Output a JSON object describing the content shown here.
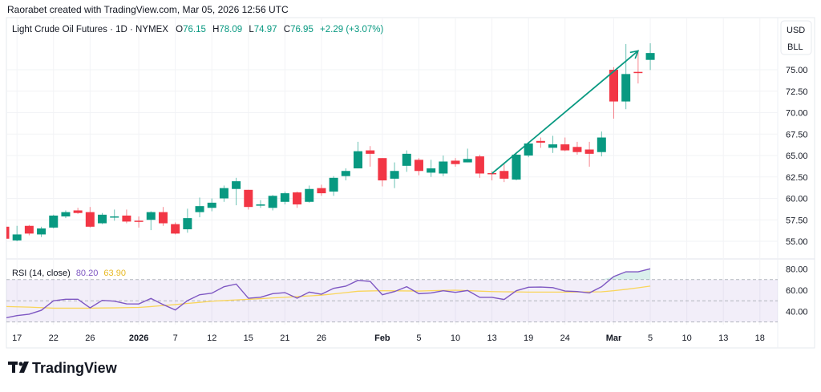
{
  "header": {
    "credit": "Raorabet created with TradingView.com, Mar 05, 2026 12:56 UTC"
  },
  "legend": {
    "symbol": "Light Crude Oil Futures · 1D · NYMEX",
    "o_label": "O",
    "o": "76.15",
    "h_label": "H",
    "h": "78.09",
    "l_label": "L",
    "l": "74.97",
    "c_label": "C",
    "c": "76.95",
    "change": "+2.29 (+3.07%)"
  },
  "price_axis": {
    "currency": "USD",
    "unit": "BLL",
    "ticks": [
      "75.00",
      "72.50",
      "70.00",
      "67.50",
      "65.00",
      "62.50",
      "60.00",
      "57.50",
      "55.00"
    ]
  },
  "rsi": {
    "label": "RSI (14, close)",
    "value": "80.20",
    "ma_value": "63.90",
    "ticks": [
      "80.00",
      "60.00",
      "40.00"
    ],
    "bands": [
      70,
      50,
      30
    ]
  },
  "time_axis": [
    {
      "t": "17",
      "i": 1
    },
    {
      "t": "22",
      "i": 4
    },
    {
      "t": "26",
      "i": 7
    },
    {
      "t": "2026",
      "i": 11,
      "bold": true
    },
    {
      "t": "7",
      "i": 14
    },
    {
      "t": "12",
      "i": 17
    },
    {
      "t": "15",
      "i": 20
    },
    {
      "t": "21",
      "i": 23
    },
    {
      "t": "26",
      "i": 26
    },
    {
      "t": "Feb",
      "i": 31,
      "bold": true
    },
    {
      "t": "5",
      "i": 34
    },
    {
      "t": "10",
      "i": 37
    },
    {
      "t": "13",
      "i": 40
    },
    {
      "t": "19",
      "i": 43
    },
    {
      "t": "24",
      "i": 46
    },
    {
      "t": "Mar",
      "i": 50,
      "bold": true
    },
    {
      "t": "5",
      "i": 53
    },
    {
      "t": "10",
      "i": 56
    },
    {
      "t": "13",
      "i": 59
    },
    {
      "t": "18",
      "i": 62
    }
  ],
  "colors": {
    "up": "#089981",
    "down": "#f23645",
    "rsi": "#7e57c2",
    "rsi_ma": "#f9d55a",
    "arrow": "#089981",
    "change": "#089981"
  },
  "footer": {
    "logo": "TradingView"
  },
  "chart_data": {
    "type": "candlestick",
    "ylim": [
      53.5,
      80.5
    ],
    "ohlc": [
      [
        56.7,
        56.9,
        55.2,
        55.3
      ],
      [
        55.1,
        56.8,
        55.0,
        55.8
      ],
      [
        56.8,
        56.9,
        55.7,
        55.9
      ],
      [
        55.8,
        56.7,
        55.5,
        56.5
      ],
      [
        56.6,
        58.1,
        56.5,
        58.0
      ],
      [
        57.9,
        58.6,
        57.7,
        58.4
      ],
      [
        58.6,
        58.9,
        58.2,
        58.3
      ],
      [
        58.4,
        59.0,
        56.6,
        56.7
      ],
      [
        57.1,
        58.3,
        57.0,
        58.1
      ],
      [
        57.8,
        58.7,
        57.4,
        57.9
      ],
      [
        58.0,
        58.7,
        57.1,
        57.3
      ],
      [
        57.4,
        57.9,
        56.6,
        57.3
      ],
      [
        57.5,
        58.5,
        56.3,
        58.4
      ],
      [
        58.4,
        59.0,
        56.8,
        57.1
      ],
      [
        57.0,
        57.2,
        55.8,
        55.9
      ],
      [
        56.4,
        58.8,
        56.0,
        57.7
      ],
      [
        58.4,
        60.1,
        57.8,
        59.1
      ],
      [
        58.9,
        60.0,
        58.5,
        59.5
      ],
      [
        60.0,
        61.5,
        59.6,
        61.2
      ],
      [
        61.1,
        62.4,
        59.2,
        62.0
      ],
      [
        61.0,
        61.0,
        58.7,
        59.0
      ],
      [
        59.15,
        59.8,
        58.9,
        59.3
      ],
      [
        58.9,
        60.4,
        58.6,
        60.3
      ],
      [
        59.6,
        60.8,
        59.3,
        60.6
      ],
      [
        60.7,
        60.8,
        58.9,
        59.3
      ],
      [
        59.6,
        61.5,
        59.5,
        61.1
      ],
      [
        61.2,
        61.6,
        60.3,
        60.6
      ],
      [
        60.8,
        62.6,
        60.3,
        62.4
      ],
      [
        62.6,
        63.5,
        62.1,
        63.2
      ],
      [
        63.5,
        66.6,
        63.5,
        65.5
      ],
      [
        65.6,
        66.1,
        63.7,
        65.2
      ],
      [
        64.7,
        64.7,
        61.4,
        62.1
      ],
      [
        62.3,
        64.2,
        61.2,
        63.2
      ],
      [
        63.8,
        65.6,
        63.1,
        65.2
      ],
      [
        64.5,
        64.7,
        62.7,
        63.2
      ],
      [
        63.0,
        64.5,
        62.5,
        63.5
      ],
      [
        62.9,
        65.0,
        62.6,
        64.3
      ],
      [
        64.4,
        64.7,
        63.7,
        64.0
      ],
      [
        64.2,
        65.8,
        64.2,
        64.6
      ],
      [
        64.9,
        65.1,
        62.4,
        62.9
      ],
      [
        62.95,
        63.2,
        62.1,
        62.85
      ],
      [
        63.2,
        64.1,
        61.9,
        62.3
      ],
      [
        62.2,
        65.4,
        62.1,
        65.1
      ],
      [
        65.0,
        66.6,
        64.8,
        66.4
      ],
      [
        66.7,
        67.1,
        65.9,
        66.5
      ],
      [
        65.9,
        67.3,
        65.3,
        66.3
      ],
      [
        66.3,
        67.1,
        65.5,
        65.6
      ],
      [
        66.0,
        66.6,
        65.1,
        65.4
      ],
      [
        65.7,
        66.6,
        63.7,
        65.2
      ],
      [
        65.4,
        67.8,
        64.9,
        67.1
      ],
      [
        75.0,
        75.3,
        69.3,
        71.3
      ],
      [
        71.3,
        78.0,
        70.4,
        74.5
      ],
      [
        74.75,
        77.3,
        73.4,
        74.65
      ],
      [
        76.15,
        78.09,
        74.97,
        76.95
      ]
    ],
    "rsi": [
      33.7,
      36,
      37.3,
      41,
      50,
      51.4,
      51.4,
      43.3,
      50.4,
      49.6,
      47.1,
      47,
      52.2,
      46.4,
      41.3,
      50.2,
      55.7,
      57.2,
      63.3,
      65.8,
      52.4,
      53.3,
      56.7,
      57.7,
      52.4,
      58.2,
      56.2,
      61.8,
      63.8,
      69.3,
      68.3,
      55.7,
      58.7,
      63.3,
      56.7,
      57.4,
      59.5,
      58,
      59.7,
      53.2,
      53.2,
      51.2,
      59.5,
      62.8,
      63,
      62.4,
      59.2,
      58.7,
      57.4,
      63.3,
      72.9,
      77.4,
      77.4,
      80.2
    ],
    "rsi_ma": [
      44.6,
      44.3,
      44,
      43.5,
      43,
      43,
      43,
      43,
      43.2,
      43.3,
      43.5,
      43.7,
      44.5,
      45.5,
      46.4,
      47.5,
      48.5,
      49.6,
      50.2,
      50.8,
      51.4,
      52,
      52.7,
      53.3,
      54,
      54.6,
      55.3,
      56.5,
      57.7,
      59,
      59.3,
      59.5,
      59.4,
      59.3,
      59.2,
      59.5,
      59.8,
      60,
      59.6,
      59.1,
      58.7,
      58.5,
      58.4,
      58.2,
      58.2,
      58.2,
      58.2,
      58.3,
      58.4,
      58.5,
      59.5,
      60.8,
      62.3,
      63.9
    ],
    "rsi_ylim": [
      27,
      83
    ],
    "arrow": {
      "from": [
        40,
        62.9
      ],
      "to": [
        52,
        77.2
      ]
    }
  }
}
